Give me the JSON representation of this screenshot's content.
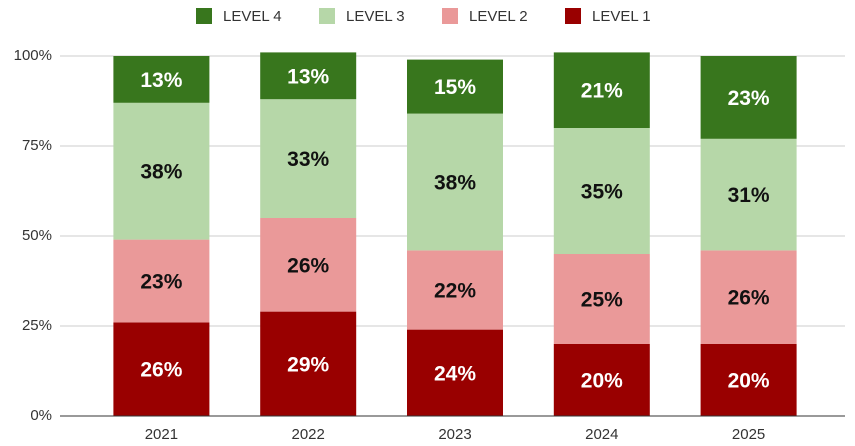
{
  "chart_data": {
    "type": "stacked_bar",
    "categories": [
      "2021",
      "2022",
      "2023",
      "2024",
      "2025"
    ],
    "series": [
      {
        "name": "LEVEL 4",
        "color": "#38761d",
        "values": [
          13,
          13,
          15,
          21,
          23
        ],
        "value_labels": [
          "13%",
          "13%",
          "15%",
          "21%",
          "23%"
        ]
      },
      {
        "name": "LEVEL 3",
        "color": "#b6d7a8",
        "values": [
          38,
          33,
          38,
          35,
          31
        ],
        "value_labels": [
          "38%",
          "33%",
          "38%",
          "35%",
          "31%"
        ]
      },
      {
        "name": "LEVEL 2",
        "color": "#ea9999",
        "values": [
          23,
          26,
          22,
          25,
          26
        ],
        "value_labels": [
          "23%",
          "26%",
          "22%",
          "25%",
          "26%"
        ]
      },
      {
        "name": "LEVEL 1",
        "color": "#990000",
        "values": [
          26,
          29,
          24,
          20,
          20
        ],
        "value_labels": [
          "26%",
          "29%",
          "24%",
          "20%",
          "20%"
        ]
      }
    ],
    "ylim": [
      0,
      100
    ],
    "yticks": [
      {
        "value": 0,
        "label": "0%"
      },
      {
        "value": 25,
        "label": "25%"
      },
      {
        "value": 50,
        "label": "50%"
      },
      {
        "value": 75,
        "label": "75%"
      },
      {
        "value": 100,
        "label": "100%"
      }
    ],
    "grid": true,
    "legend": "top"
  }
}
